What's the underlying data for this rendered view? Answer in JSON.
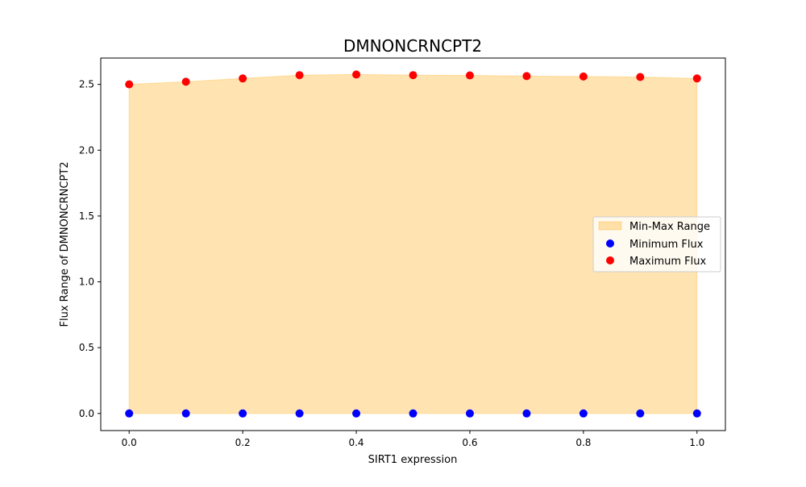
{
  "chart_data": {
    "type": "scatter",
    "title": "DMNONCRNCPT2",
    "xlabel": "SIRT1 expression",
    "ylabel": "Flux Range of DMNONCRNCPT2",
    "xlim": [
      -0.05,
      1.05
    ],
    "ylim": [
      -0.13,
      2.7
    ],
    "x_ticks": [
      "0.0",
      "0.2",
      "0.4",
      "0.6",
      "0.8",
      "1.0"
    ],
    "y_ticks": [
      "0.0",
      "0.5",
      "1.0",
      "1.5",
      "2.0",
      "2.5"
    ],
    "x": [
      0.0,
      0.1,
      0.2,
      0.3,
      0.4,
      0.5,
      0.6,
      0.7,
      0.8,
      0.9,
      1.0
    ],
    "series": [
      {
        "name": "Minimum Flux",
        "color": "#0000ff",
        "values": [
          0,
          0,
          0,
          0,
          0,
          0,
          0,
          0,
          0,
          0,
          0
        ]
      },
      {
        "name": "Maximum Flux",
        "color": "#ff0000",
        "values": [
          2.5,
          2.52,
          2.545,
          2.57,
          2.575,
          2.57,
          2.568,
          2.563,
          2.56,
          2.556,
          2.545
        ]
      }
    ],
    "fill": {
      "name": "Min-Max Range",
      "color": "#ffa500",
      "opacity": 0.3
    },
    "legend": {
      "position": "center-right"
    },
    "grid": false
  }
}
